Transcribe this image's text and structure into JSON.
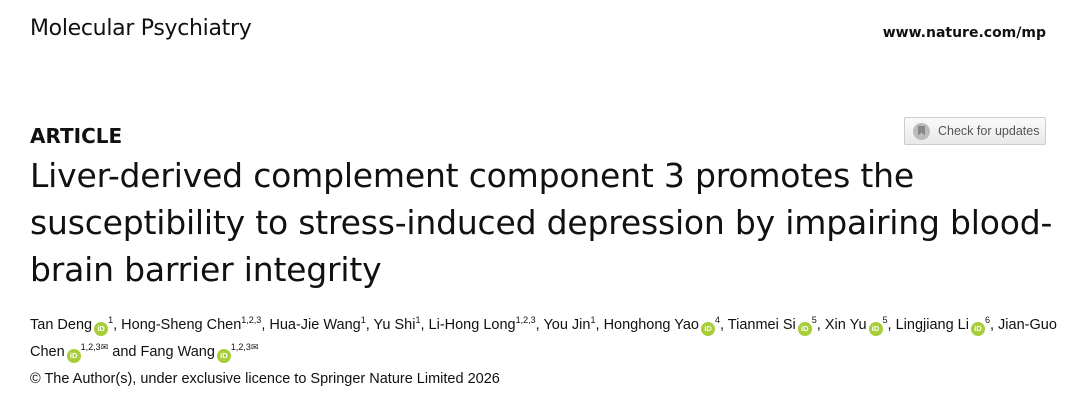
{
  "header": {
    "journal": "Molecular Psychiatry",
    "url": "www.nature.com/mp"
  },
  "article_type": "ARTICLE",
  "check_updates": {
    "label": "Check for updates",
    "icon": "bookmark-icon"
  },
  "title": "Liver-derived complement component 3 promotes the susceptibility to stress-induced depression by impairing blood-brain barrier integrity",
  "authors": [
    {
      "name": "Tan Deng",
      "orcid": true,
      "aff": "1",
      "sep": ", "
    },
    {
      "name": "Hong-Sheng Chen",
      "orcid": false,
      "aff": "1,2,3",
      "sep": ", "
    },
    {
      "name": "Hua-Jie Wang",
      "orcid": false,
      "aff": "1",
      "sep": ", "
    },
    {
      "name": "Yu Shi",
      "orcid": false,
      "aff": "1",
      "sep": ", "
    },
    {
      "name": "Li-Hong Long",
      "orcid": false,
      "aff": "1,2,3",
      "sep": ", "
    },
    {
      "name": "You Jin",
      "orcid": false,
      "aff": "1",
      "sep": ", "
    },
    {
      "name": "Honghong Yao",
      "orcid": true,
      "aff": "4",
      "sep": ", "
    },
    {
      "name": "Tianmei Si",
      "orcid": true,
      "aff": "5",
      "sep": ", "
    },
    {
      "name": "Xin Yu",
      "orcid": true,
      "aff": "5",
      "sep": ", "
    },
    {
      "name": "Lingjiang Li",
      "orcid": true,
      "aff": "6",
      "sep": ", "
    },
    {
      "name": "Jian-Guo Chen",
      "orcid": true,
      "aff": "1,2,3",
      "mail": true,
      "sep": " and "
    },
    {
      "name": "Fang Wang",
      "orcid": true,
      "aff": "1,2,3",
      "mail": true,
      "sep": ""
    }
  ],
  "copyright": "© The Author(s), under exclusive licence to Springer Nature Limited 2026"
}
